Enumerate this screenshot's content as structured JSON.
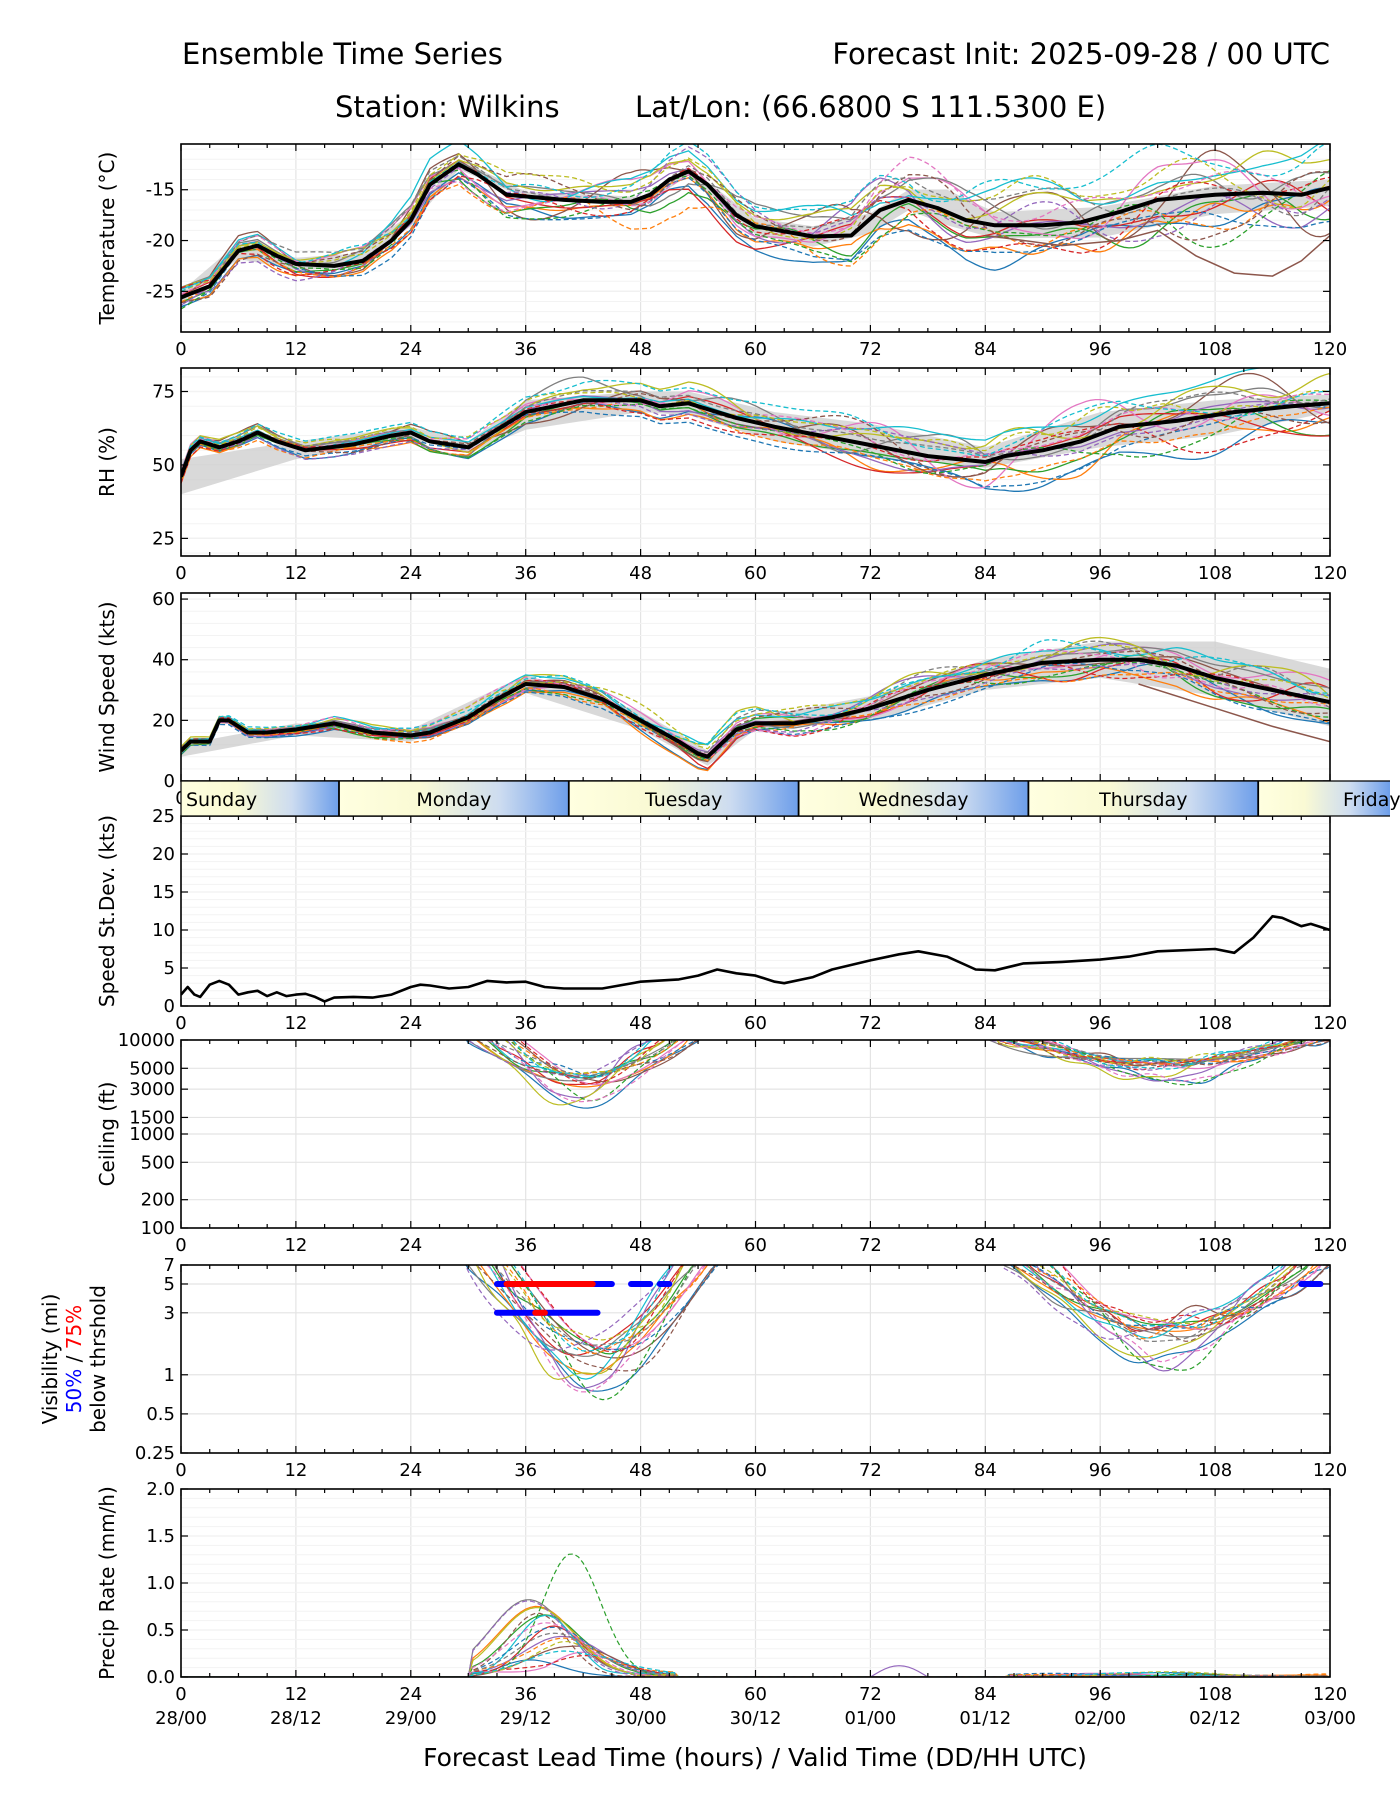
{
  "header": {
    "title_left": "Ensemble Time Series",
    "title_right": "Forecast Init: 2025-09-28 / 00 UTC",
    "station": "Station: Wilkins",
    "latlon": "Lat/Lon: (66.6800 S 111.5300 E)"
  },
  "xaxis": {
    "label": "Forecast Lead Time (hours) / Valid Time (DD/HH UTC)",
    "ticks": [
      0,
      12,
      24,
      36,
      48,
      60,
      72,
      84,
      96,
      108,
      120
    ],
    "valid_times": [
      "28/00",
      "28/12",
      "29/00",
      "29/12",
      "30/00",
      "30/12",
      "01/00",
      "01/12",
      "02/00",
      "02/12",
      "03/00"
    ]
  },
  "day_band": {
    "days": [
      "Sunday",
      "Monday",
      "Tuesday",
      "Wednesday",
      "Thursday",
      "Friday"
    ],
    "boundaries_h": [
      16.5,
      40.5,
      64.5,
      88.5,
      112.5
    ]
  },
  "colors": {
    "mean": "#000000",
    "spread": "#cccccc",
    "vis50": "#0000ff",
    "vis75": "#ff0000",
    "members": [
      "#1f77b4",
      "#ff7f0e",
      "#2ca02c",
      "#d62728",
      "#9467bd",
      "#8c564b",
      "#e377c2",
      "#7f7f7f",
      "#bcbd22",
      "#17becf"
    ]
  },
  "chart_data": [
    {
      "type": "line",
      "ylabel": "Temperature (°C)",
      "ylim": [
        -29,
        -10.5
      ],
      "yticks": [
        -25,
        -20,
        -15
      ],
      "mean": [
        [
          0,
          -25.6
        ],
        [
          3,
          -24.5
        ],
        [
          6,
          -21
        ],
        [
          8,
          -20.5
        ],
        [
          10,
          -21.5
        ],
        [
          12,
          -22.3
        ],
        [
          16,
          -22.5
        ],
        [
          19,
          -22
        ],
        [
          22,
          -20
        ],
        [
          24,
          -18
        ],
        [
          26,
          -14.5
        ],
        [
          29,
          -12.5
        ],
        [
          31,
          -13.5
        ],
        [
          34,
          -15.5
        ],
        [
          40,
          -16
        ],
        [
          44,
          -16.2
        ],
        [
          47,
          -16.2
        ],
        [
          49,
          -15.5
        ],
        [
          51,
          -14
        ],
        [
          53,
          -13.2
        ],
        [
          55,
          -14.5
        ],
        [
          58,
          -17.5
        ],
        [
          60,
          -18.6
        ],
        [
          66,
          -19.6
        ],
        [
          70,
          -19.5
        ],
        [
          73,
          -17
        ],
        [
          76,
          -16
        ],
        [
          79,
          -16.8
        ],
        [
          82,
          -18
        ],
        [
          85,
          -18.5
        ],
        [
          90,
          -18.5
        ],
        [
          94,
          -18.2
        ],
        [
          98,
          -17.2
        ],
        [
          102,
          -16
        ],
        [
          108,
          -15.5
        ],
        [
          113,
          -15.3
        ],
        [
          117,
          -15.5
        ],
        [
          120,
          -14.8
        ]
      ],
      "spread_upper": [
        [
          0,
          -25
        ],
        [
          6,
          -20.2
        ],
        [
          12,
          -21.7
        ],
        [
          18,
          -21.3
        ],
        [
          24,
          -17.4
        ],
        [
          29,
          -12
        ],
        [
          36,
          -15.2
        ],
        [
          48,
          -15.7
        ],
        [
          53,
          -12.8
        ],
        [
          60,
          -17.8
        ],
        [
          66,
          -18.6
        ],
        [
          72,
          -17.3
        ],
        [
          76,
          -15
        ],
        [
          80,
          -15
        ],
        [
          85,
          -17.2
        ],
        [
          96,
          -16.7
        ],
        [
          108,
          -14.6
        ],
        [
          120,
          -14
        ]
      ],
      "spread_lower": [
        [
          0,
          -26.2
        ],
        [
          6,
          -21.8
        ],
        [
          12,
          -22.9
        ],
        [
          18,
          -22.7
        ],
        [
          24,
          -18.6
        ],
        [
          29,
          -13
        ],
        [
          36,
          -15.8
        ],
        [
          48,
          -16.7
        ],
        [
          53,
          -13.6
        ],
        [
          60,
          -19.4
        ],
        [
          66,
          -20.6
        ],
        [
          72,
          -19.3
        ],
        [
          76,
          -17
        ],
        [
          80,
          -18.5
        ],
        [
          85,
          -19.8
        ],
        [
          96,
          -19.7
        ],
        [
          108,
          -17.4
        ],
        [
          120,
          -16.6
        ]
      ],
      "member_amp": 1.5,
      "member_growth": 0.7,
      "outlier": [
        [
          84,
          -19.5
        ],
        [
          92,
          -20.5
        ],
        [
          98,
          -20
        ],
        [
          102,
          -19
        ],
        [
          106,
          -21.5
        ],
        [
          110,
          -23.2
        ],
        [
          114,
          -23.5
        ],
        [
          117,
          -22
        ],
        [
          120,
          -19.5
        ]
      ]
    },
    {
      "type": "line",
      "ylabel": "RH (%)",
      "ylim": [
        19,
        83
      ],
      "yticks": [
        25,
        50,
        75
      ],
      "mean": [
        [
          0,
          46
        ],
        [
          1,
          55
        ],
        [
          2,
          58
        ],
        [
          4,
          56
        ],
        [
          6,
          58
        ],
        [
          8,
          61
        ],
        [
          10,
          58
        ],
        [
          13,
          55
        ],
        [
          18,
          57
        ],
        [
          22,
          60
        ],
        [
          24,
          61
        ],
        [
          26,
          58
        ],
        [
          30,
          56
        ],
        [
          32,
          60
        ],
        [
          36,
          68
        ],
        [
          42,
          72
        ],
        [
          48,
          72
        ],
        [
          50,
          70
        ],
        [
          53,
          71
        ],
        [
          58,
          66
        ],
        [
          62,
          63
        ],
        [
          70,
          58
        ],
        [
          78,
          53
        ],
        [
          84,
          51
        ],
        [
          86,
          53
        ],
        [
          90,
          55
        ],
        [
          94,
          58
        ],
        [
          98,
          63
        ],
        [
          104,
          65
        ],
        [
          110,
          68
        ],
        [
          116,
          70
        ],
        [
          120,
          71
        ]
      ],
      "spread_upper": [
        [
          0,
          52
        ],
        [
          12,
          58
        ],
        [
          24,
          63
        ],
        [
          30,
          58
        ],
        [
          36,
          72
        ],
        [
          48,
          75
        ],
        [
          53,
          75
        ],
        [
          62,
          68
        ],
        [
          72,
          64
        ],
        [
          84,
          56
        ],
        [
          96,
          68
        ],
        [
          108,
          72
        ],
        [
          120,
          74
        ]
      ],
      "spread_lower": [
        [
          0,
          40
        ],
        [
          12,
          52
        ],
        [
          24,
          59
        ],
        [
          30,
          54
        ],
        [
          36,
          62
        ],
        [
          48,
          68
        ],
        [
          53,
          67
        ],
        [
          62,
          58
        ],
        [
          72,
          53
        ],
        [
          84,
          49
        ],
        [
          96,
          56
        ],
        [
          108,
          60
        ],
        [
          120,
          68
        ]
      ],
      "member_amp": 2.5,
      "member_growth": 2.0,
      "outlier": null
    },
    {
      "type": "line",
      "ylabel": "Wind Speed (kts)",
      "ylim": [
        0,
        62
      ],
      "yticks": [
        0,
        20,
        40,
        60
      ],
      "mean": [
        [
          0,
          10
        ],
        [
          1,
          13
        ],
        [
          3,
          13
        ],
        [
          4,
          20
        ],
        [
          5,
          20
        ],
        [
          7,
          16
        ],
        [
          9,
          16
        ],
        [
          12,
          17
        ],
        [
          16,
          19
        ],
        [
          20,
          16
        ],
        [
          24,
          15
        ],
        [
          26,
          16
        ],
        [
          30,
          21
        ],
        [
          33,
          27
        ],
        [
          36,
          32
        ],
        [
          40,
          31
        ],
        [
          44,
          27
        ],
        [
          48,
          20
        ],
        [
          52,
          13
        ],
        [
          54,
          9
        ],
        [
          55,
          8
        ],
        [
          56,
          11
        ],
        [
          58,
          17
        ],
        [
          60,
          19
        ],
        [
          64,
          19
        ],
        [
          68,
          21
        ],
        [
          72,
          24
        ],
        [
          78,
          30
        ],
        [
          84,
          35
        ],
        [
          90,
          39
        ],
        [
          96,
          40
        ],
        [
          100,
          40
        ],
        [
          104,
          38
        ],
        [
          108,
          34
        ],
        [
          114,
          30
        ],
        [
          120,
          26
        ]
      ],
      "spread_upper": [
        [
          0,
          12
        ],
        [
          12,
          19
        ],
        [
          24,
          17
        ],
        [
          36,
          35
        ],
        [
          48,
          23
        ],
        [
          55,
          10
        ],
        [
          60,
          21
        ],
        [
          72,
          28
        ],
        [
          84,
          40
        ],
        [
          96,
          46
        ],
        [
          108,
          46
        ],
        [
          120,
          37
        ]
      ],
      "spread_lower": [
        [
          0,
          8
        ],
        [
          12,
          15
        ],
        [
          24,
          13
        ],
        [
          36,
          29
        ],
        [
          48,
          17
        ],
        [
          55,
          5
        ],
        [
          60,
          17
        ],
        [
          72,
          20
        ],
        [
          84,
          30
        ],
        [
          96,
          34
        ],
        [
          108,
          28
        ],
        [
          120,
          18
        ]
      ],
      "member_amp": 1.5,
      "member_growth": 1.4,
      "outlier": [
        [
          100,
          32
        ],
        [
          108,
          24
        ],
        [
          114,
          18
        ],
        [
          120,
          13
        ]
      ]
    },
    {
      "type": "line",
      "ylabel": "Speed St.Dev. (kts)",
      "ylim": [
        0,
        25
      ],
      "yticks": [
        0,
        5,
        10,
        15,
        20,
        25
      ],
      "mean": [
        [
          0,
          1.5
        ],
        [
          0.7,
          2.5
        ],
        [
          1.4,
          1.5
        ],
        [
          2,
          1.2
        ],
        [
          3,
          2.8
        ],
        [
          4,
          3.3
        ],
        [
          5,
          2.8
        ],
        [
          6,
          1.5
        ],
        [
          7,
          1.8
        ],
        [
          8,
          2
        ],
        [
          9,
          1.3
        ],
        [
          10,
          1.8
        ],
        [
          11,
          1.3
        ],
        [
          12,
          1.5
        ],
        [
          13,
          1.6
        ],
        [
          14,
          1.2
        ],
        [
          15,
          0.6
        ],
        [
          16,
          1.1
        ],
        [
          18,
          1.2
        ],
        [
          20,
          1.1
        ],
        [
          22,
          1.5
        ],
        [
          24,
          2.5
        ],
        [
          25,
          2.8
        ],
        [
          26,
          2.7
        ],
        [
          28,
          2.3
        ],
        [
          30,
          2.5
        ],
        [
          32,
          3.3
        ],
        [
          34,
          3.1
        ],
        [
          36,
          3.2
        ],
        [
          38,
          2.5
        ],
        [
          40,
          2.3
        ],
        [
          44,
          2.3
        ],
        [
          48,
          3.2
        ],
        [
          52,
          3.5
        ],
        [
          54,
          4
        ],
        [
          56,
          4.8
        ],
        [
          58,
          4.3
        ],
        [
          60,
          4
        ],
        [
          62,
          3.2
        ],
        [
          63,
          3
        ],
        [
          66,
          3.8
        ],
        [
          68,
          4.8
        ],
        [
          72,
          6
        ],
        [
          75,
          6.8
        ],
        [
          77,
          7.2
        ],
        [
          80,
          6.5
        ],
        [
          83,
          4.8
        ],
        [
          85,
          4.7
        ],
        [
          88,
          5.6
        ],
        [
          92,
          5.8
        ],
        [
          96,
          6.1
        ],
        [
          99,
          6.5
        ],
        [
          102,
          7.2
        ],
        [
          108,
          7.5
        ],
        [
          110,
          7
        ],
        [
          112,
          9
        ],
        [
          114,
          11.8
        ],
        [
          115,
          11.6
        ],
        [
          117,
          10.5
        ],
        [
          118,
          10.8
        ],
        [
          120,
          10
        ]
      ]
    },
    {
      "type": "line",
      "ylabel": "Ceiling (ft)",
      "ylim": [
        100,
        10000
      ],
      "yticks": [
        100,
        200,
        500,
        1000,
        1500,
        3000,
        5000,
        10000
      ],
      "windows": [
        {
          "start": 30,
          "end": 54,
          "base": 3800,
          "dip": 1700
        },
        {
          "start": 84.5,
          "end": 120,
          "base": 5600,
          "dip": 3300
        }
      ]
    },
    {
      "type": "line",
      "ylabel": "Visibility (mi)",
      "ylabel2": "50%",
      "ylabel3": "75%",
      "ylabel_sep": " / ",
      "ylabel4": "below thrshold",
      "ylim": [
        0.25,
        7
      ],
      "yticks": [
        0.25,
        0.5,
        1,
        3,
        5,
        7
      ],
      "ytick_labels": [
        "0.25",
        "0.5",
        "1",
        "3",
        "5",
        "7"
      ],
      "windows": [
        {
          "start": 30,
          "end": 56,
          "base": 1.4,
          "dip": 0.55
        },
        {
          "start": 86,
          "end": 120,
          "base": 2.2,
          "dip": 1.1
        }
      ],
      "threshold_bars": [
        {
          "y": 5,
          "color": "#0000ff",
          "x": [
            33,
            45
          ]
        },
        {
          "y": 5,
          "color": "#ff0000",
          "x": [
            34,
            43
          ]
        },
        {
          "y": 5,
          "color": "#0000ff",
          "x": [
            47,
            49
          ]
        },
        {
          "y": 5,
          "color": "#0000ff",
          "x": [
            50,
            51
          ]
        },
        {
          "y": 5,
          "color": "#0000ff",
          "x": [
            117,
            119
          ]
        },
        {
          "y": 3,
          "color": "#0000ff",
          "x": [
            33,
            43.5
          ]
        },
        {
          "y": 3,
          "color": "#ff0000",
          "x": [
            37,
            38
          ]
        }
      ]
    },
    {
      "type": "line",
      "ylabel": "Precip Rate (mm/h)",
      "ylim": [
        0,
        2
      ],
      "yticks": [
        0,
        0.5,
        1,
        1.5,
        2
      ],
      "ytick_labels": [
        "0.0",
        "0.5",
        "1.0",
        "1.5",
        "2.0"
      ],
      "event": {
        "start": 30,
        "peak": 39,
        "end": 52,
        "peak_max": 1.28
      }
    }
  ]
}
